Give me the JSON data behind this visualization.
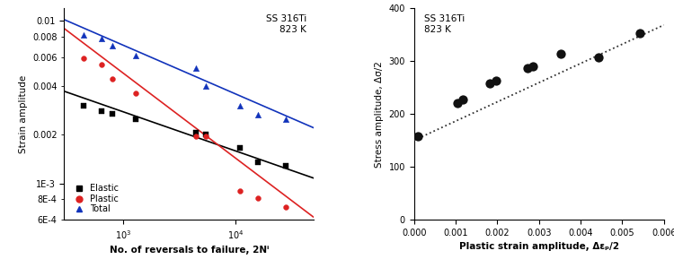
{
  "left": {
    "annotation": "SS 316Ti\n823 K",
    "xlabel": "No. of reversals to failure, 2Nⁱ",
    "ylabel": "Strain amplitude",
    "xlim": [
      300,
      50000
    ],
    "ylim": [
      0.0006,
      0.012
    ],
    "elastic_x": [
      450,
      650,
      800,
      1300,
      4500,
      5500,
      11000,
      16000,
      28000
    ],
    "elastic_y": [
      0.003,
      0.0028,
      0.0027,
      0.0025,
      0.00205,
      0.002,
      0.00165,
      0.00135,
      0.00128
    ],
    "plastic_x": [
      450,
      650,
      800,
      1300,
      4500,
      5500,
      11000,
      16000,
      28000
    ],
    "plastic_y": [
      0.0059,
      0.0054,
      0.0044,
      0.0036,
      0.00195,
      0.00195,
      0.0009,
      0.00082,
      0.00072
    ],
    "total_x": [
      450,
      650,
      800,
      1300,
      4500,
      5500,
      11000,
      16000,
      28000
    ],
    "total_y": [
      0.0082,
      0.0078,
      0.007,
      0.0061,
      0.0051,
      0.004,
      0.003,
      0.00265,
      0.0025
    ],
    "elastic_fit_x": [
      300,
      50000
    ],
    "elastic_fit_y": [
      0.0037,
      0.00108
    ],
    "plastic_fit_x": [
      300,
      50000
    ],
    "plastic_fit_y": [
      0.009,
      0.00062
    ],
    "total_fit_x": [
      300,
      50000
    ],
    "total_fit_y": [
      0.0102,
      0.0022
    ],
    "elastic_color": "#000000",
    "plastic_color": "#dd2222",
    "total_color": "#1133bb"
  },
  "right": {
    "annotation": "SS 316Ti\n823 K",
    "xlabel": "Plastic strain amplitude, Δεₚ/2",
    "ylabel": "Stress amplitude, Δσ/2",
    "xlim": [
      0.0,
      0.006
    ],
    "ylim": [
      0,
      400
    ],
    "data_x": [
      0.0001,
      0.00104,
      0.00118,
      0.00182,
      0.00198,
      0.00272,
      0.00285,
      0.00352,
      0.00442,
      0.00542
    ],
    "data_y": [
      157,
      220,
      227,
      258,
      262,
      286,
      290,
      313,
      307,
      352
    ],
    "fit_x": [
      0.0,
      0.006
    ],
    "fit_y": [
      150,
      368
    ]
  }
}
